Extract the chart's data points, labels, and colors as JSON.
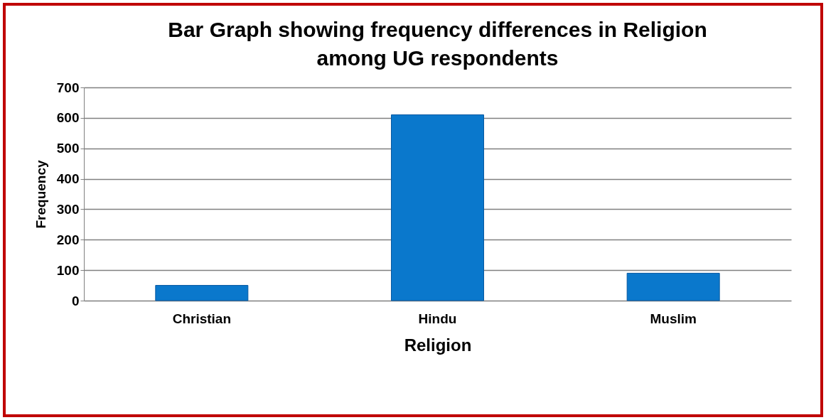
{
  "chart_data": {
    "type": "bar",
    "title": [
      "Bar Graph showing frequency differences in Religion",
      "among UG respondents"
    ],
    "xlabel": "Religion",
    "ylabel": "Frequency",
    "categories": [
      "Christian",
      "Hindu",
      "Muslim"
    ],
    "values": [
      50,
      610,
      90
    ],
    "color": "#0a78cc",
    "ylim": [
      0,
      700
    ],
    "yticks": [
      0,
      100,
      200,
      300,
      400,
      500,
      600,
      700
    ],
    "grid": "y"
  }
}
